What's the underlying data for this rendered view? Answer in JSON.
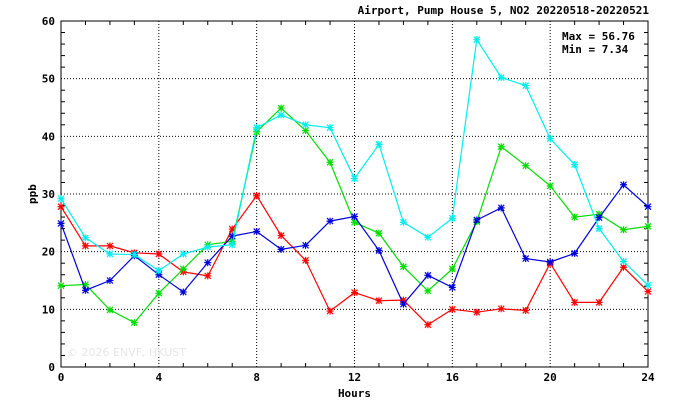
{
  "chart_data": {
    "type": "line",
    "title": "Airport, Pump House 5, NO2 20220518-20220521",
    "xlabel": "Hours",
    "ylabel": "ppb",
    "xlim": [
      0,
      24
    ],
    "ylim": [
      0,
      60
    ],
    "xticks": [
      0,
      4,
      8,
      12,
      16,
      20,
      24
    ],
    "yticks": [
      0,
      10,
      20,
      30,
      40,
      50,
      60
    ],
    "grid": true,
    "stats": {
      "max_label": "Max = 56.76",
      "min_label": "Min =  7.34"
    },
    "watermark": "© 2026  ENVF, HKUST",
    "x": [
      0,
      1,
      2,
      3,
      4,
      5,
      6,
      7,
      8,
      9,
      10,
      11,
      12,
      13,
      14,
      15,
      16,
      17,
      18,
      19,
      20,
      21,
      22,
      23,
      24
    ],
    "series": [
      {
        "color": "#ff0000",
        "values": [
          27.8,
          21.0,
          21.0,
          19.8,
          19.6,
          16.5,
          15.8,
          23.9,
          29.7,
          22.8,
          18.5,
          9.7,
          12.9,
          11.5,
          11.6,
          7.34,
          10.0,
          9.5,
          10.1,
          9.8,
          18.0,
          11.2,
          11.2,
          17.3,
          13.1
        ]
      },
      {
        "color": "#00dd00",
        "values": [
          14.1,
          14.3,
          9.9,
          7.7,
          12.8,
          17.0,
          21.2,
          21.8,
          40.8,
          44.9,
          41.0,
          35.5,
          25.1,
          23.2,
          17.4,
          13.2,
          17.0,
          25.2,
          38.2,
          34.9,
          31.4,
          26.0,
          26.5,
          23.8,
          24.4
        ]
      },
      {
        "color": "#0000dd",
        "values": [
          24.9,
          13.3,
          15.0,
          19.3,
          16.0,
          13.0,
          18.1,
          22.7,
          23.5,
          20.4,
          21.1,
          25.3,
          26.1,
          20.2,
          10.9,
          15.9,
          13.8,
          25.5,
          27.6,
          18.8,
          18.2,
          19.7,
          25.9,
          31.6,
          27.8
        ]
      },
      {
        "color": "#00eeee",
        "values": [
          29.2,
          22.4,
          19.6,
          19.5,
          16.7,
          19.6,
          20.8,
          21.2,
          41.5,
          43.7,
          42.0,
          41.5,
          32.7,
          38.6,
          25.1,
          22.5,
          25.8,
          56.76,
          50.2,
          48.8,
          39.6,
          35.1,
          24.0,
          18.3,
          14.2
        ]
      }
    ]
  }
}
